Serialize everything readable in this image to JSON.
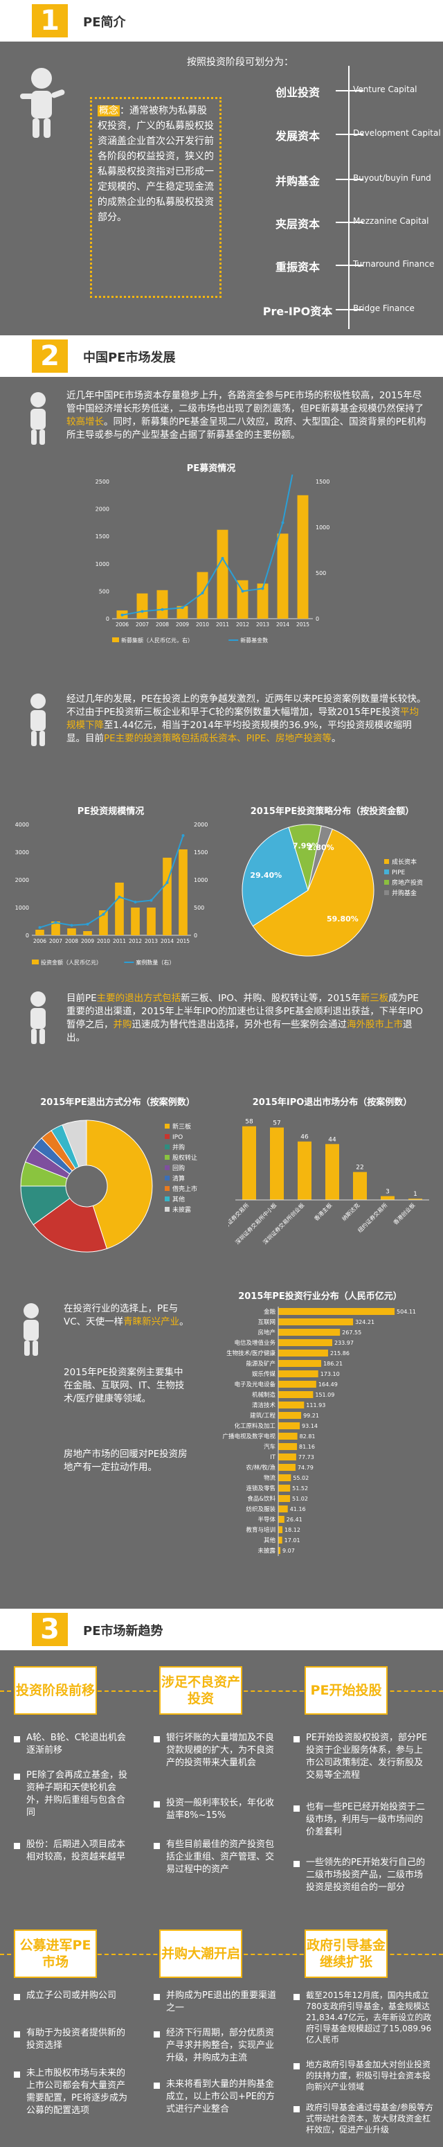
{
  "colors": {
    "bg": "#6b6b6b",
    "accent": "#f5b60e",
    "band": "#ffffff"
  },
  "s1": {
    "num": "1",
    "title": "PE简介",
    "stages_caption": "按照投资阶段可划分为：",
    "concept_label": "概念",
    "concept_text": "：通常被称为私募股权投资，广义的私募股权投资涵盖企业首次公开发行前各阶段的权益投资，狭义的私募股权投资指对已形成一定规模的、产生稳定现金流的成熟企业的私募股权投资部分。",
    "stages": [
      {
        "cn": "创业投资",
        "en": "Venture Capital"
      },
      {
        "cn": "发展资本",
        "en": "Development Capital"
      },
      {
        "cn": "并购基金",
        "en": "Buyout/buyin Fund"
      },
      {
        "cn": "夹层资本",
        "en": "Mezzanine Capital"
      },
      {
        "cn": "重振资本",
        "en": "Turnaround Finance"
      },
      {
        "cn": "Pre-IPO资本",
        "en": "Bridge Finance"
      }
    ]
  },
  "s2": {
    "num": "2",
    "title": "中国PE市场发展",
    "p1a": "近几年中国PE市场资本存量稳步上升，各路资金参与PE市场的积极性较高，2015年尽管中国经济增长形势低迷，二级市场也出现了剧烈震荡，但PE新募基金规模仍然保持了",
    "p1b": "较高增长",
    "p1c": "。同时，新募集的PE基金呈现二八效应，政府、大型国企、国资背景的PE机构所主导或参与的产业型基金占据了新募基金的主要份额。",
    "p2a": "经过几年的发展，PE在投资上的竞争越发激烈，近两年以来PE投资案例数量增长较快。不过由于PE投资新三板企业和早于C轮的案例数量大幅增加，导致2015年PE投资",
    "p2b": "平均规模下降",
    "p2c": "至1.44亿元，相当于2014年平均投资规模的36.9%，平均投资规模收缩明显。目前",
    "p2d": "PE主要的投资策略包括成长资本、PIPE、房地产投资等",
    "p2e": "。",
    "p3a": "目前PE",
    "p3b": "主要的退出方式包括",
    "p3c": "新三板、IPO、并购、股权转让等，2015年",
    "p3d": "新三板",
    "p3e": "成为PE重要的退出渠道，2015年上半年IPO的加速也让很多PE基金顺利退出获益，下半年IPO暂停之后，",
    "p3f": "并购",
    "p3g": "迅速成为替代性退出选择，另外也有一些案例会通过",
    "p3h": "海外股市上市",
    "p3i": "退出。",
    "p4a": "在投资行业的选择上，PE与VC、天使一样",
    "p4b": "青睐新兴产业",
    "p4c": "。",
    "p5": "2015年PE投资案例主要集中在金融、互联网、IT、生物技术/医疗健康等领域。",
    "p6": "房地产市场的回暖对PE投资房地产有一定拉动作用。"
  },
  "chart_data": [
    {
      "type": "bar",
      "title": "PE募资情况",
      "categories": [
        "2006",
        "2007",
        "2008",
        "2009",
        "2010",
        "2011",
        "2012",
        "2013",
        "2014",
        "2015"
      ],
      "series": [
        {
          "name": "新募集额（人民币亿元，右）",
          "values": [
            150,
            460,
            520,
            230,
            850,
            1620,
            700,
            640,
            1550,
            2250
          ]
        },
        {
          "name": "新募基金数",
          "values": [
            40,
            80,
            100,
            120,
            280,
            660,
            300,
            330,
            1050,
            2150
          ]
        }
      ],
      "ylim": [
        0,
        2500
      ],
      "yticks": [
        0,
        500,
        1000,
        1500,
        2000,
        2500
      ],
      "y2lim": [
        0,
        1500
      ],
      "y2ticks": [
        0,
        500,
        1000,
        1500
      ]
    },
    {
      "type": "bar",
      "title": "PE投资规模情况",
      "categories": [
        "2006",
        "2007",
        "2008",
        "2009",
        "2010",
        "2011",
        "2012",
        "2013",
        "2014",
        "2015"
      ],
      "series": [
        {
          "name": "投资金额（人民币亿元）",
          "values": [
            200,
            500,
            250,
            150,
            900,
            1900,
            1000,
            1000,
            2800,
            3100
          ]
        },
        {
          "name": "案例数量（右）",
          "values": [
            140,
            230,
            180,
            200,
            380,
            690,
            600,
            630,
            950,
            1800
          ]
        }
      ],
      "ylim": [
        0,
        4000
      ],
      "yticks": [
        0,
        1000,
        2000,
        3000,
        4000
      ],
      "y2lim": [
        0,
        2000
      ],
      "y2ticks": [
        0,
        500,
        1000,
        1500,
        2000
      ]
    },
    {
      "type": "pie",
      "title": "2015年PE投资策略分布（按投资金额）",
      "series": [
        {
          "values": [
            59.8,
            29.4,
            7.99,
            2.8
          ]
        }
      ],
      "labels": [
        "59.80%",
        "29.40%",
        "7.99%",
        "2.80%"
      ],
      "categories": [
        "成长资本",
        "PIPE",
        "房地产投资",
        "并购基金"
      ],
      "colors": [
        "#f5b60e",
        "#45b1d8",
        "#8bbf3f",
        "#888888"
      ]
    },
    {
      "type": "pie",
      "title": "2015年PE退出方式分布（按案例数）",
      "categories": [
        "新三板",
        "IPO",
        "并购",
        "股权转让",
        "回购",
        "清算",
        "借壳上市",
        "其他",
        "未披露"
      ],
      "series": [
        {
          "values": [
            45,
            20,
            10,
            6,
            4,
            3,
            3,
            3,
            6
          ]
        }
      ],
      "colors": [
        "#f5b60e",
        "#c8352f",
        "#2f8d80",
        "#8ac43f",
        "#7e4f9e",
        "#3a6fb7",
        "#e97b1f",
        "#36b6c9",
        "#d8d8d8"
      ]
    },
    {
      "type": "bar",
      "title": "2015年IPO退出市场分布（按案例数）",
      "categories": [
        "上海证券交易所",
        "深圳证券交易所中小板",
        "深圳证券交易所创业板",
        "香港主板",
        "纳斯达克",
        "纽约证券交易所",
        "香港创业板"
      ],
      "values": [
        58,
        57,
        46,
        44,
        22,
        3,
        1
      ]
    },
    {
      "type": "bar",
      "title": "2015年PE投资行业分布（人民币亿元）",
      "categories": [
        "金融",
        "互联网",
        "房地产",
        "电信及增值业务",
        "生物技术/医疗健康",
        "能源及矿产",
        "娱乐传媒",
        "电子及光电设备",
        "机械制造",
        "清洁技术",
        "建筑/工程",
        "化工原料及加工",
        "广播电视及数字电视",
        "汽车",
        "IT",
        "农/林/牧/渔",
        "物流",
        "连锁及零售",
        "食品&饮料",
        "纺织及服装",
        "半导体",
        "教育与培训",
        "其他",
        "未披露"
      ],
      "values": [
        504.11,
        324.21,
        267.55,
        233.97,
        215.86,
        186.21,
        173.1,
        164.49,
        151.09,
        111.93,
        99.21,
        93.14,
        82.81,
        81.16,
        77.73,
        74.79,
        55.02,
        51.52,
        51.02,
        41.16,
        26.41,
        18.12,
        17.01,
        9.07
      ]
    }
  ],
  "s3": {
    "num": "3",
    "title": "PE市场新趋势",
    "h1": "投资阶段前移",
    "h2": "涉足不良资产投资",
    "h3": "PE开始投股",
    "c1": [
      "A轮、B轮、C轮退出机会逐渐前移",
      "PE除了会再成立基金，投资种子期和天使轮机会外，并购后重组与包含合同",
      "股份：后期进入项目成本相对较高，投资越来越早"
    ],
    "c2": [
      "银行坏账的大量增加及不良贷款规模的扩大，为不良资产的投资带来大量机会",
      "投资一般利率较长，年化收益率8%~15%",
      "有些目前最佳的资产投资包括企业重组、资产管理、交易过程中的资产"
    ],
    "c3": [
      "PE开始投资股权投资，部分PE投资于企业服务体系，参与上市公司政策制定、发行新股及交易等全流程",
      "也有一些PE已经开始投资于二级市场，利用与一级市场间的价差套利",
      "一些领先的PE开始发行自己的二级市场投资产品，二级市场投资是投资组合的一部分"
    ],
    "h4": "公募进军PE市场",
    "h5": "并购大潮开启",
    "h6": "政府引导基金继续扩张",
    "c4": [
      "成立子公司或并购公司",
      "有助于为投资者提供新的投资选择",
      "未上市股权市场与未来的上市公司都会有大量资产需要配置，PE将逐步成为公募的配置选项"
    ],
    "c5": [
      "并购成为PE退出的重要渠道之一",
      "经济下行周期，部分优质资产寻求并购整合，实现产业升级，并购成为主流",
      "未来将看到大量的并购基金成立，以上市公司+PE的方式进行产业整合"
    ],
    "c6": [
      "截至2015年12月底，国内共成立780支政府引导基金，基金规模达21,834.47亿元，去年新设立的政府引导基金规模超过了15,089.96亿人民币",
      "地方政府引导基金加大对创业投资的扶持力度，积极引导社会资本投向新兴产业领域",
      "政府引导基金通过母基金/参股等方式带动社会资本，放大财政资金杠杆效应，促进产业升级"
    ]
  }
}
